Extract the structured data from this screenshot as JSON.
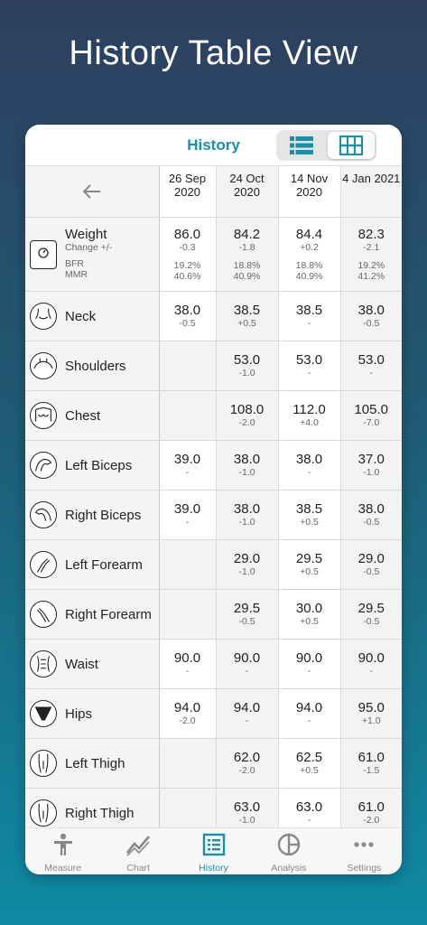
{
  "headline": "History Table View",
  "topbar": {
    "title": "History"
  },
  "dates": [
    "26 Sep\n2020",
    "24 Oct\n2020",
    "14 Nov\n2020",
    "4 Jan 2021"
  ],
  "weight": {
    "label": "Weight",
    "sub1": "Change +/-",
    "sub2": "BFR",
    "sub3": "MMR",
    "cells": [
      {
        "v": "86.0",
        "d": "-0.3",
        "bfr": "19.2%",
        "mmr": "40.6%"
      },
      {
        "v": "84.2",
        "d": "-1.8",
        "bfr": "18.8%",
        "mmr": "40.9%"
      },
      {
        "v": "84.4",
        "d": "+0.2",
        "bfr": "18.8%",
        "mmr": "40.9%"
      },
      {
        "v": "82.3",
        "d": "-2.1",
        "bfr": "19.2%",
        "mmr": "41.2%"
      }
    ]
  },
  "rows": [
    {
      "label": "Neck",
      "cells": [
        {
          "v": "38.0",
          "d": "-0.5"
        },
        {
          "v": "38.5",
          "d": "+0.5"
        },
        {
          "v": "38.5",
          "d": "-"
        },
        {
          "v": "38.0",
          "d": "-0.5"
        }
      ]
    },
    {
      "label": "Shoulders",
      "cells": [
        {
          "v": "",
          "d": ""
        },
        {
          "v": "53.0",
          "d": "-1.0"
        },
        {
          "v": "53.0",
          "d": "-"
        },
        {
          "v": "53.0",
          "d": "-"
        }
      ]
    },
    {
      "label": "Chest",
      "cells": [
        {
          "v": "",
          "d": ""
        },
        {
          "v": "108.0",
          "d": "-2.0"
        },
        {
          "v": "112.0",
          "d": "+4.0"
        },
        {
          "v": "105.0",
          "d": "-7.0"
        }
      ]
    },
    {
      "label": "Left Biceps",
      "cells": [
        {
          "v": "39.0",
          "d": "-"
        },
        {
          "v": "38.0",
          "d": "-1.0"
        },
        {
          "v": "38.0",
          "d": "-"
        },
        {
          "v": "37.0",
          "d": "-1.0"
        }
      ]
    },
    {
      "label": "Right Biceps",
      "cells": [
        {
          "v": "39.0",
          "d": "-"
        },
        {
          "v": "38.0",
          "d": "-1.0"
        },
        {
          "v": "38.5",
          "d": "+0.5"
        },
        {
          "v": "38.0",
          "d": "-0.5"
        }
      ]
    },
    {
      "label": "Left Forearm",
      "cells": [
        {
          "v": "",
          "d": ""
        },
        {
          "v": "29.0",
          "d": "-1.0"
        },
        {
          "v": "29.5",
          "d": "+0.5"
        },
        {
          "v": "29.0",
          "d": "-0.5"
        }
      ]
    },
    {
      "label": "Right Forearm",
      "cells": [
        {
          "v": "",
          "d": ""
        },
        {
          "v": "29.5",
          "d": "-0.5"
        },
        {
          "v": "30.0",
          "d": "+0.5"
        },
        {
          "v": "29.5",
          "d": "-0.5"
        }
      ]
    },
    {
      "label": "Waist",
      "cells": [
        {
          "v": "90.0",
          "d": "-"
        },
        {
          "v": "90.0",
          "d": "-"
        },
        {
          "v": "90.0",
          "d": "-"
        },
        {
          "v": "90.0",
          "d": "-"
        }
      ]
    },
    {
      "label": "Hips",
      "cells": [
        {
          "v": "94.0",
          "d": "-2.0"
        },
        {
          "v": "94.0",
          "d": "-"
        },
        {
          "v": "94.0",
          "d": "-"
        },
        {
          "v": "95.0",
          "d": "+1.0"
        }
      ]
    },
    {
      "label": "Left Thigh",
      "cells": [
        {
          "v": "",
          "d": ""
        },
        {
          "v": "62.0",
          "d": "-2.0"
        },
        {
          "v": "62.5",
          "d": "+0.5"
        },
        {
          "v": "61.0",
          "d": "-1.5"
        }
      ]
    },
    {
      "label": "Right Thigh",
      "cells": [
        {
          "v": "",
          "d": ""
        },
        {
          "v": "63.0",
          "d": "-1.0"
        },
        {
          "v": "63.0",
          "d": "-"
        },
        {
          "v": "61.0",
          "d": "-2.0"
        }
      ]
    }
  ],
  "nav": [
    {
      "label": "Measure"
    },
    {
      "label": "Chart"
    },
    {
      "label": "History"
    },
    {
      "label": "Analysis"
    },
    {
      "label": "Settings"
    }
  ],
  "colors": {
    "accent": "#1a8fa8"
  }
}
